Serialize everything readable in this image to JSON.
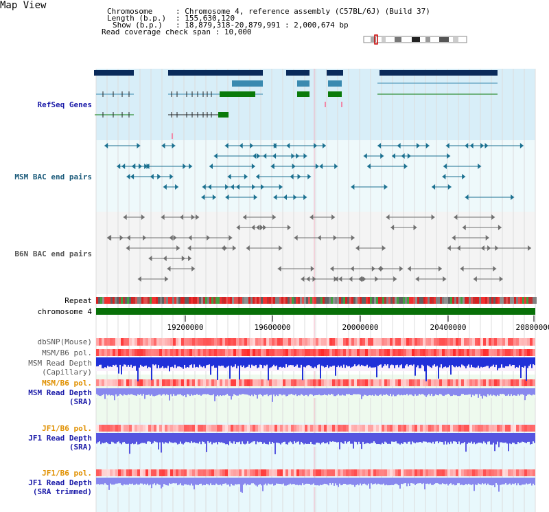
{
  "title": "Map View",
  "header": {
    "chromosome_label": "Chromosome",
    "chromosome_value": ": Chromosome 4, reference assembly (C57BL/6J) (Build 37)",
    "length_label": "Length (b.p.)",
    "length_value": ": 155,630,120",
    "show_label": "Show (b.p.)",
    "show_value": ": 18,879,318-20,879,991 : 2,000,674 bp",
    "coverage_label": "Read coverage check span",
    "coverage_value": ": 10,000"
  },
  "tracks": {
    "refseq": "RefSeq Genes",
    "msm_bac": "MSM BAC end pairs",
    "b6n_bac": "B6N BAC end pairs",
    "repeat": "Repeat",
    "chromosome": "chromosome 4",
    "dbsnp": "dbSNP(Mouse)",
    "msm_b6_pol_1": "MSM/B6 pol.",
    "msm_read_depth_cap_1": "MSM Read Depth",
    "msm_read_depth_cap_2": "(Capillary)",
    "msm_b6_pol_2": "MSM/B6 pol.",
    "msm_read_depth_sra_1": "MSM Read Depth",
    "msm_read_depth_sra_2": "(SRA)",
    "jf1_b6_pol_1": "JF1/B6 pol.",
    "jf1_read_depth_sra_1": "JF1 Read Depth",
    "jf1_read_depth_sra_2": "(SRA)",
    "jf1_b6_pol_2": "JF1/B6 pol.",
    "jf1_read_depth_trim_1": "JF1 Read Depth",
    "jf1_read_depth_trim_2": "(SRA trimmed)"
  },
  "axis_ticks": [
    "19200000",
    "19600000",
    "20000000",
    "20400000",
    "20800000"
  ],
  "colors": {
    "label_blue": "#1a1aa8",
    "label_teal": "#1a5a7a",
    "label_gray": "#555555",
    "label_orange": "#e09000",
    "refseq_bg": "#d8eef8",
    "msm_bac_bg": "#eef9fb",
    "b6n_bac_bg": "#f4f4f4",
    "chromosome_green": "#087008",
    "gene_navy": "#0a2a5a",
    "gene_teal": "#3a8ab0",
    "gene_green": "#0a7a0a"
  }
}
